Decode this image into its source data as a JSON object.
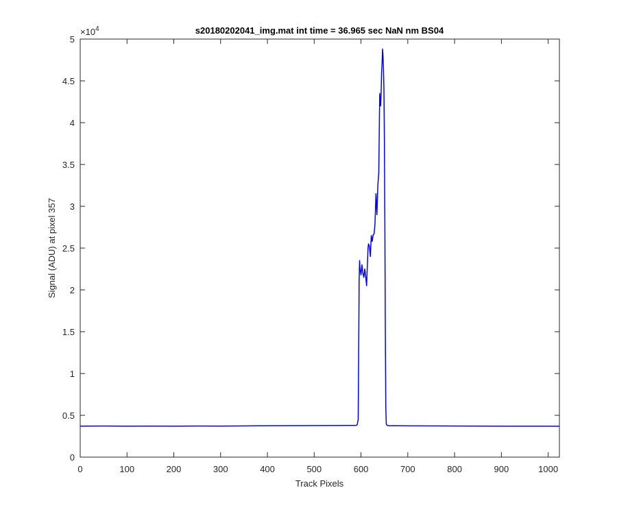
{
  "chart_data": {
    "type": "line",
    "title": "s20180202041_img.mat int time = 36.965 sec  NaN nm BS04",
    "xlabel": "Track Pixels",
    "ylabel": "Signal (ADU) at pixel 357",
    "xlim": [
      0,
      1024
    ],
    "ylim": [
      0,
      50000
    ],
    "x_ticks": [
      0,
      100,
      200,
      300,
      400,
      500,
      600,
      700,
      800,
      900,
      1000
    ],
    "y_ticks": [
      0,
      5000,
      10000,
      15000,
      20000,
      25000,
      30000,
      35000,
      40000,
      45000,
      50000
    ],
    "y_tick_labels": [
      "0",
      "0.5",
      "1",
      "1.5",
      "2",
      "2.5",
      "3",
      "3.5",
      "4",
      "4.5",
      "5"
    ],
    "y_exponent_base": "×10",
    "y_exponent_power": "4",
    "grid": false,
    "line_color": "#0000ff",
    "series": [
      {
        "x": [
          0,
          50,
          100,
          150,
          200,
          250,
          300,
          350,
          400,
          450,
          500,
          550,
          580,
          590,
          592,
          594,
          595,
          596,
          597,
          598,
          600,
          602,
          604,
          606,
          608,
          610,
          612,
          614,
          615,
          616,
          618,
          620,
          622,
          624,
          626,
          628,
          630,
          632,
          634,
          636,
          638,
          640,
          642,
          643,
          644,
          645,
          646,
          647,
          648,
          649,
          650,
          651,
          652,
          653,
          654,
          655,
          656,
          657,
          658,
          660,
          662,
          665,
          670,
          680,
          700,
          750,
          800,
          850,
          900,
          950,
          1000,
          1024
        ],
        "y": [
          3700,
          3720,
          3700,
          3710,
          3700,
          3720,
          3710,
          3730,
          3750,
          3760,
          3770,
          3780,
          3790,
          3800,
          3900,
          4500,
          12000,
          21000,
          23500,
          22500,
          21800,
          23000,
          22000,
          21500,
          22500,
          21600,
          20500,
          23500,
          25000,
          25500,
          25200,
          24000,
          26500,
          25800,
          26600,
          26700,
          28000,
          31500,
          29000,
          32500,
          34000,
          43500,
          42000,
          43500,
          46000,
          47000,
          48800,
          48000,
          46500,
          44000,
          38000,
          28000,
          15000,
          6000,
          4000,
          3850,
          3800,
          3780,
          3770,
          3760,
          3750,
          3750,
          3760,
          3750,
          3740,
          3730,
          3720,
          3710,
          3700,
          3700,
          3700,
          3690
        ]
      }
    ]
  }
}
